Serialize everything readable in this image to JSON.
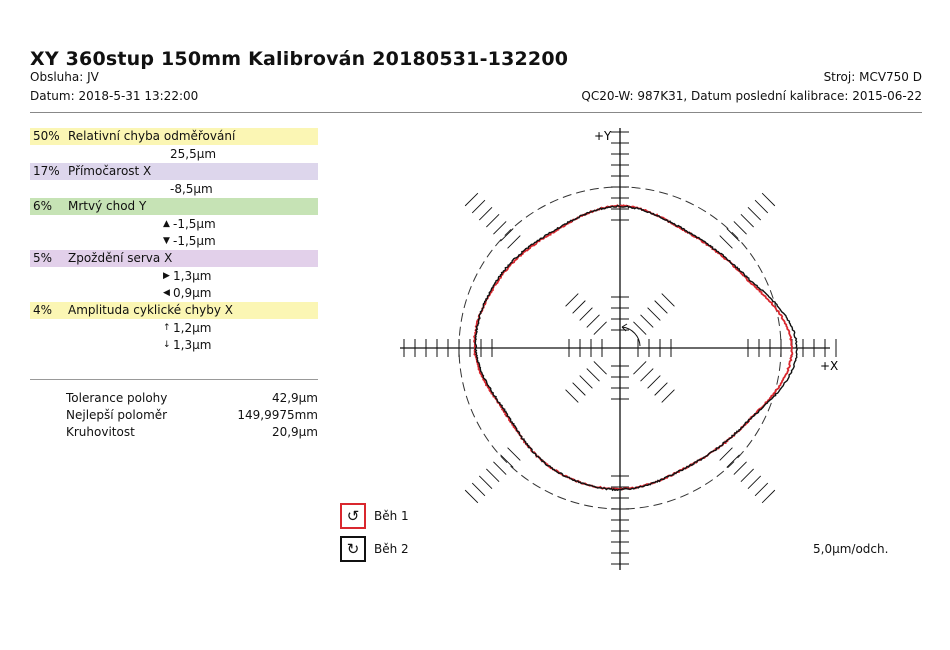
{
  "header": {
    "title": "XY 360stup 150mm Kalibrován 20180531-132200",
    "operator": "Obsluha: JV",
    "date": "Datum: 2018-5-31 13:22:00",
    "machine": "Stroj: MCV750 D",
    "calibration": "QC20-W: 987K31, Datum poslední kalibrace: 2015-06-22"
  },
  "errors": [
    {
      "pct": "50%",
      "label": "Relativní chyba odměřování",
      "color": "#fbf6b4",
      "values": [
        {
          "arrow": "",
          "text": "25,5µm"
        }
      ]
    },
    {
      "pct": "17%",
      "label": "Přímočarost X",
      "color": "#ddd6ec",
      "values": [
        {
          "arrow": "",
          "text": "-8,5µm"
        }
      ]
    },
    {
      "pct": "6%",
      "label": "Mrtvý chod Y",
      "color": "#c6e3b5",
      "values": [
        {
          "arrow": "▲",
          "text": "-1,5µm"
        },
        {
          "arrow": "▼",
          "text": "-1,5µm"
        }
      ]
    },
    {
      "pct": "5%",
      "label": "Zpoždění serva X",
      "color": "#e2d0ea",
      "values": [
        {
          "arrow": "▶",
          "text": "1,3µm"
        },
        {
          "arrow": "◀",
          "text": "0,9µm"
        }
      ]
    },
    {
      "pct": "4%",
      "label": "Amplituda cyklické chyby X",
      "color": "#fbf6b4",
      "values": [
        {
          "arrow": "↑",
          "text": "1,2µm"
        },
        {
          "arrow": "↓",
          "text": "1,3µm"
        }
      ]
    }
  ],
  "summary": [
    {
      "label": "Tolerance polohy",
      "value": "42,9µm"
    },
    {
      "label": "Nejlepší poloměr",
      "value": "149,9975mm"
    },
    {
      "label": "Kruhovitost",
      "value": "20,9µm"
    }
  ],
  "legend": [
    {
      "label": "Běh 1",
      "color": "#d9272e",
      "icon": "rotate-ccw-icon"
    },
    {
      "label": "Běh 2",
      "color": "#111111",
      "icon": "rotate-cw-icon"
    }
  ],
  "scale_label": "5,0µm/odch.",
  "chart_data": {
    "type": "line",
    "plot_kind": "polar-deviation",
    "x_axis_label": "+X",
    "y_axis_label": "+Y",
    "scale_um_per_division": 5.0,
    "nominal_radius_um": 0,
    "angles_deg": [
      0,
      30,
      60,
      90,
      120,
      150,
      180,
      210,
      240,
      270,
      300,
      330
    ],
    "series": [
      {
        "name": "Běh 1",
        "color": "#d9272e",
        "deviation_um": [
          3.4,
          -3.1,
          -5.2,
          -3.4,
          -5.3,
          -4.1,
          -2.6,
          -5.7,
          -4.3,
          -3.6,
          -4.6,
          -2.2
        ]
      },
      {
        "name": "Běh 2",
        "color": "#111111",
        "deviation_um": [
          4.5,
          -2.8,
          -5.1,
          -3.5,
          -5.1,
          -3.8,
          -2.9,
          -5.9,
          -4.3,
          -3.5,
          -4.6,
          -2.2
        ]
      }
    ]
  }
}
